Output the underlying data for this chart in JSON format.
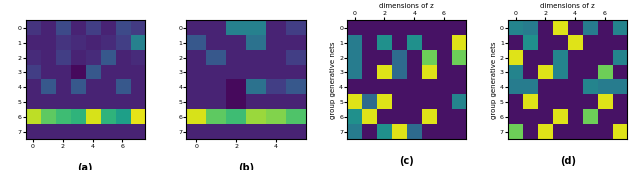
{
  "subplot_a": [
    [
      0.32,
      0.28,
      0.38,
      0.28,
      0.35,
      0.28,
      0.38,
      0.34
    ],
    [
      0.28,
      0.28,
      0.32,
      0.3,
      0.28,
      0.3,
      0.35,
      0.55
    ],
    [
      0.3,
      0.28,
      0.35,
      0.28,
      0.3,
      0.42,
      0.28,
      0.3
    ],
    [
      0.35,
      0.28,
      0.28,
      0.22,
      0.42,
      0.28,
      0.28,
      0.28
    ],
    [
      0.28,
      0.42,
      0.28,
      0.42,
      0.28,
      0.28,
      0.42,
      0.28
    ],
    [
      0.28,
      0.28,
      0.28,
      0.28,
      0.28,
      0.28,
      0.28,
      0.28
    ],
    [
      0.92,
      0.8,
      0.75,
      0.72,
      0.95,
      0.72,
      0.65,
      0.97
    ],
    [
      0.28,
      0.28,
      0.28,
      0.28,
      0.28,
      0.28,
      0.28,
      0.28
    ]
  ],
  "subplot_b": [
    [
      0.28,
      0.28,
      0.55,
      0.55,
      0.28,
      0.35
    ],
    [
      0.42,
      0.28,
      0.28,
      0.5,
      0.28,
      0.28
    ],
    [
      0.28,
      0.42,
      0.28,
      0.28,
      0.28,
      0.35
    ],
    [
      0.28,
      0.28,
      0.28,
      0.28,
      0.28,
      0.28
    ],
    [
      0.28,
      0.28,
      0.22,
      0.5,
      0.35,
      0.42
    ],
    [
      0.28,
      0.28,
      0.22,
      0.28,
      0.28,
      0.28
    ],
    [
      0.95,
      0.8,
      0.75,
      0.88,
      0.85,
      0.78
    ],
    [
      0.28,
      0.28,
      0.28,
      0.28,
      0.28,
      0.28
    ]
  ],
  "subplot_c": [
    [
      0.05,
      0.05,
      0.05,
      0.05,
      0.05,
      0.05,
      0.05,
      0.05
    ],
    [
      0.42,
      0.05,
      0.5,
      0.05,
      0.5,
      0.05,
      0.05,
      0.95
    ],
    [
      0.42,
      0.05,
      0.05,
      0.35,
      0.05,
      0.78,
      0.05,
      0.78
    ],
    [
      0.42,
      0.05,
      0.95,
      0.35,
      0.05,
      0.95,
      0.05,
      0.05
    ],
    [
      0.05,
      0.05,
      0.05,
      0.05,
      0.05,
      0.05,
      0.05,
      0.05
    ],
    [
      0.95,
      0.35,
      0.95,
      0.05,
      0.05,
      0.05,
      0.05,
      0.45
    ],
    [
      0.5,
      0.95,
      0.05,
      0.05,
      0.05,
      0.95,
      0.05,
      0.05
    ],
    [
      0.42,
      0.05,
      0.5,
      0.95,
      0.35,
      0.05,
      0.05,
      0.05
    ]
  ],
  "subplot_d": [
    [
      0.45,
      0.42,
      0.05,
      0.95,
      0.05,
      0.42,
      0.05,
      0.45
    ],
    [
      0.05,
      0.5,
      0.05,
      0.05,
      0.95,
      0.05,
      0.05,
      0.05
    ],
    [
      0.95,
      0.05,
      0.05,
      0.45,
      0.05,
      0.05,
      0.05,
      0.45
    ],
    [
      0.45,
      0.05,
      0.95,
      0.45,
      0.05,
      0.05,
      0.78,
      0.05
    ],
    [
      0.42,
      0.42,
      0.05,
      0.05,
      0.05,
      0.45,
      0.42,
      0.42
    ],
    [
      0.05,
      0.95,
      0.05,
      0.05,
      0.05,
      0.05,
      0.95,
      0.05
    ],
    [
      0.05,
      0.05,
      0.05,
      0.95,
      0.05,
      0.78,
      0.05,
      0.05
    ],
    [
      0.78,
      0.05,
      0.95,
      0.05,
      0.05,
      0.05,
      0.05,
      0.95
    ]
  ],
  "cmap": "viridis",
  "label_a": "(a)",
  "label_b": "(b)",
  "label_c": "(c)",
  "label_d": "(d)",
  "xlabel_cd": "dimensions of z",
  "ylabel_cd": "group generative nets"
}
